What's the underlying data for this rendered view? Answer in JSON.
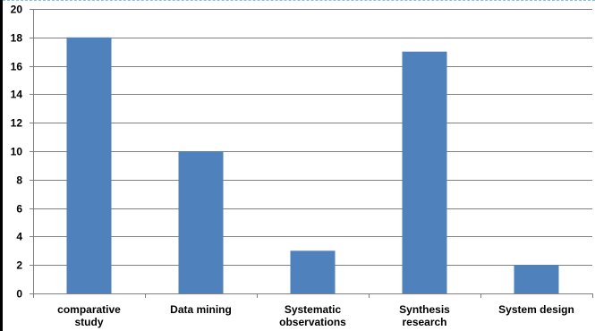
{
  "chart_data": {
    "type": "bar",
    "categories": [
      [
        "comparative",
        "study"
      ],
      [
        "Data mining"
      ],
      [
        "Systematic",
        "observations"
      ],
      [
        "Synthesis",
        "research"
      ],
      [
        "System design"
      ]
    ],
    "values": [
      18,
      10,
      3,
      17,
      2
    ],
    "ylim": [
      0,
      20
    ],
    "yticks": [
      "0",
      "2",
      "4",
      "6",
      "8",
      "10",
      "12",
      "14",
      "16",
      "18",
      "20"
    ],
    "grid": true,
    "legend": "none",
    "colors": {
      "bar": "#4f81bd",
      "grid": "#808080",
      "axis": "#808080"
    }
  }
}
